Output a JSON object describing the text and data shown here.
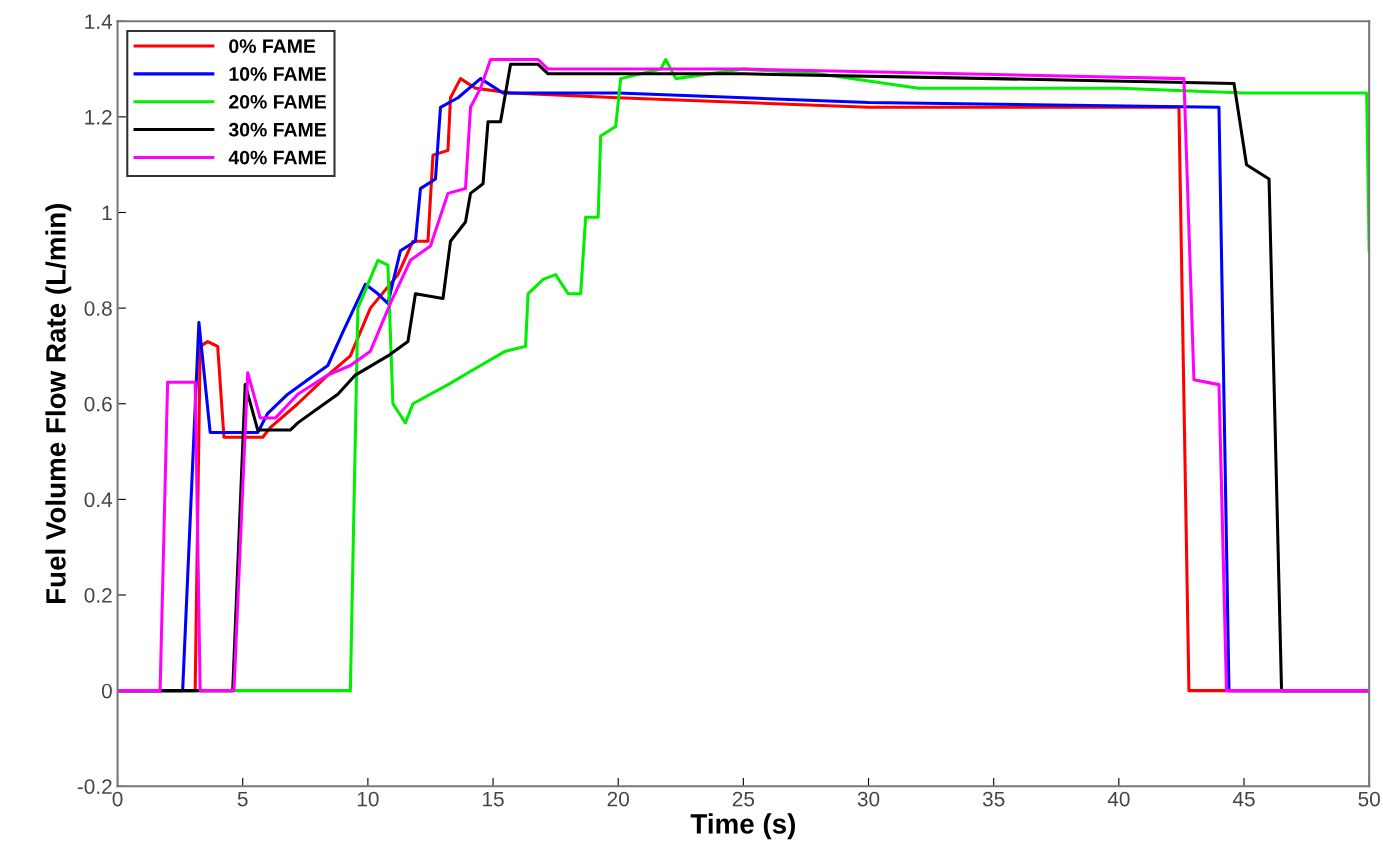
{
  "chart_data": {
    "type": "line",
    "xlabel": "Time (s)",
    "ylabel": "Fuel Volume Flow Rate (L/min)",
    "xlim": [
      0,
      50
    ],
    "ylim": [
      -0.2,
      1.4
    ],
    "xticks": [
      0,
      5,
      10,
      15,
      20,
      25,
      30,
      35,
      40,
      45,
      50
    ],
    "yticks": [
      -0.2,
      0,
      0.2,
      0.4,
      0.6,
      0.8,
      1,
      1.2,
      1.4
    ],
    "grid": false,
    "legend": "top left",
    "marker": "none",
    "line_style": "solid",
    "series": [
      {
        "name": "0% FAME",
        "color": "#ff0000",
        "x": [
          0,
          3.1,
          3.3,
          3.6,
          4.0,
          4.25,
          5.8,
          6.1,
          7.2,
          8.4,
          9.3,
          10.1,
          11.2,
          11.8,
          12.4,
          12.6,
          13.2,
          13.3,
          13.7,
          14.3,
          15.7,
          20,
          30,
          42.4,
          42.8,
          50
        ],
        "values": [
          0,
          0,
          0.72,
          0.73,
          0.72,
          0.53,
          0.53,
          0.55,
          0.6,
          0.66,
          0.7,
          0.8,
          0.87,
          0.94,
          0.94,
          1.12,
          1.13,
          1.24,
          1.28,
          1.26,
          1.25,
          1.24,
          1.22,
          1.22,
          0,
          0
        ]
      },
      {
        "name": "10% FAME",
        "color": "#0000ff",
        "x": [
          0,
          2.6,
          3.25,
          3.7,
          5.6,
          6.0,
          6.8,
          7.6,
          8.4,
          9.0,
          9.9,
          10.4,
          10.8,
          11.3,
          11.9,
          12.1,
          12.7,
          12.9,
          13.6,
          14.5,
          15.4,
          20,
          30,
          44.0,
          44.4,
          50
        ],
        "values": [
          0,
          0,
          0.77,
          0.54,
          0.54,
          0.58,
          0.62,
          0.65,
          0.68,
          0.75,
          0.85,
          0.83,
          0.81,
          0.92,
          0.94,
          1.05,
          1.07,
          1.22,
          1.24,
          1.28,
          1.25,
          1.25,
          1.23,
          1.22,
          0,
          0
        ]
      },
      {
        "name": "20% FAME",
        "color": "#00ee00",
        "x": [
          0,
          9.3,
          9.6,
          10.4,
          10.8,
          11.0,
          11.5,
          11.8,
          13.2,
          14.5,
          15.5,
          16.3,
          16.4,
          17.0,
          17.5,
          18.0,
          18.5,
          18.7,
          19.2,
          19.3,
          19.9,
          20.1,
          21.7,
          21.9,
          22.3,
          25,
          28,
          32,
          40,
          45,
          49.9,
          50
        ],
        "values": [
          0,
          0,
          0.8,
          0.9,
          0.89,
          0.6,
          0.56,
          0.6,
          0.64,
          0.68,
          0.71,
          0.72,
          0.83,
          0.86,
          0.87,
          0.83,
          0.83,
          0.99,
          0.99,
          1.16,
          1.18,
          1.28,
          1.3,
          1.32,
          1.28,
          1.3,
          1.29,
          1.26,
          1.26,
          1.25,
          1.25,
          0.92
        ]
      },
      {
        "name": "30% FAME",
        "color": "#000000",
        "x": [
          0,
          4.6,
          5.1,
          5.6,
          6.9,
          7.2,
          8.0,
          8.8,
          9.5,
          10.8,
          11.6,
          11.9,
          13.0,
          13.3,
          13.9,
          14.1,
          14.6,
          14.8,
          15.3,
          15.7,
          16.8,
          17.2,
          25,
          35,
          44.6,
          45.1,
          46.0,
          46.5,
          50
        ],
        "values": [
          0,
          0,
          0.64,
          0.545,
          0.545,
          0.56,
          0.59,
          0.62,
          0.66,
          0.7,
          0.73,
          0.83,
          0.82,
          0.94,
          0.98,
          1.04,
          1.06,
          1.19,
          1.19,
          1.31,
          1.31,
          1.29,
          1.29,
          1.28,
          1.27,
          1.1,
          1.07,
          0,
          0
        ]
      },
      {
        "name": "40% FAME",
        "color": "#ff00ff",
        "x": [
          0,
          1.7,
          2.0,
          3.1,
          3.3,
          4.65,
          5.2,
          5.7,
          6.3,
          7.2,
          8.4,
          9.3,
          10.1,
          10.9,
          11.7,
          12.5,
          13.2,
          13.9,
          14.1,
          14.5,
          14.9,
          16.8,
          17.2,
          25,
          42.6,
          43.0,
          44.0,
          44.3,
          50
        ],
        "values": [
          0,
          0,
          0.645,
          0.645,
          0,
          0,
          0.665,
          0.57,
          0.57,
          0.62,
          0.66,
          0.68,
          0.71,
          0.81,
          0.9,
          0.93,
          1.04,
          1.05,
          1.22,
          1.26,
          1.32,
          1.32,
          1.3,
          1.3,
          1.28,
          0.65,
          0.64,
          0,
          0
        ]
      }
    ]
  }
}
